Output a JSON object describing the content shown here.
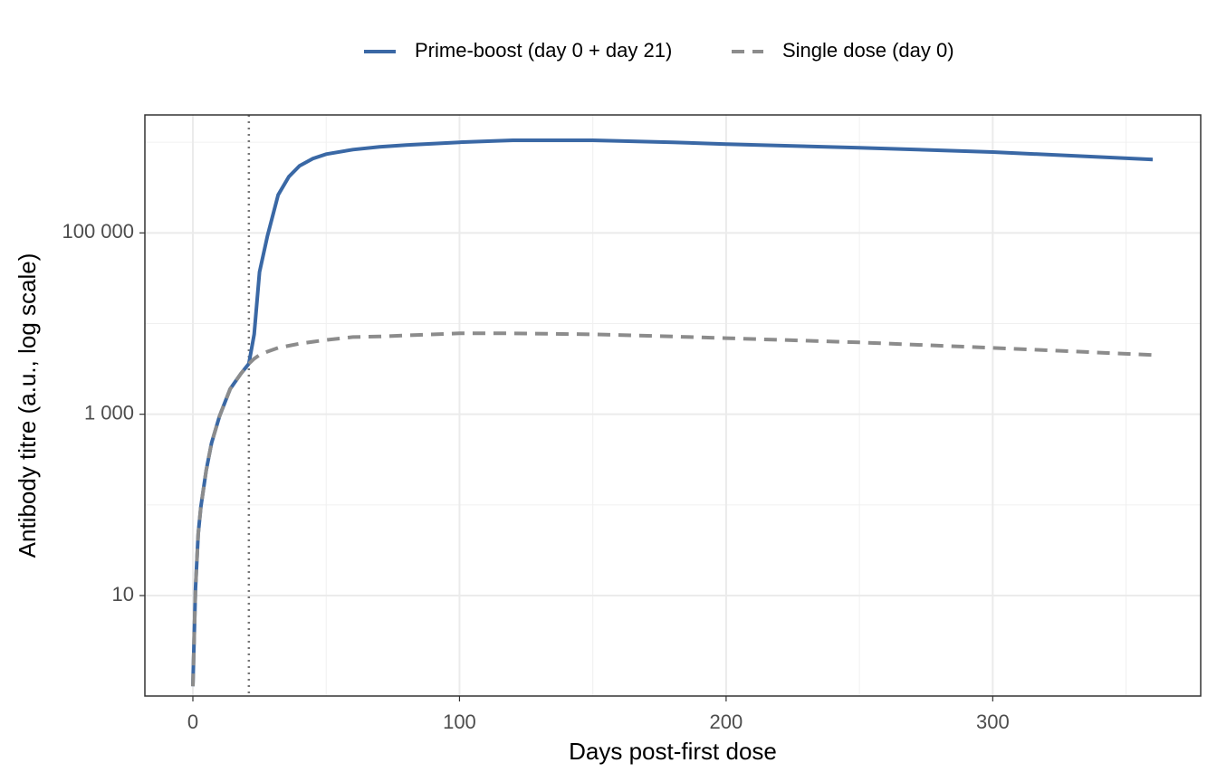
{
  "chart_data": {
    "type": "line",
    "xlabel": "Days post-first dose",
    "ylabel": "Antibody titre (a.u., log scale)",
    "x": [
      0,
      1,
      2,
      3,
      5,
      7,
      10,
      14,
      18,
      21,
      23,
      25,
      28,
      32,
      36,
      40,
      45,
      50,
      60,
      70,
      80,
      100,
      120,
      150,
      180,
      200,
      250,
      300,
      360
    ],
    "series": [
      {
        "name": "Prime-boost (day 0 + day 21)",
        "color": "#3a68a5",
        "dash": false,
        "values": [
          1,
          12,
          48,
          95,
          240,
          480,
          950,
          1900,
          2800,
          3600,
          7600,
          37000,
          93000,
          263000,
          417000,
          550000,
          660000,
          740000,
          830000,
          890000,
          930000,
          1000000,
          1050000,
          1050000,
          1000000,
          955000,
          870000,
          780000,
          645000
        ]
      },
      {
        "name": "Single dose (day 0)",
        "color": "#8c8c8c",
        "dash": true,
        "values": [
          1,
          12,
          48,
          95,
          240,
          480,
          950,
          1900,
          2800,
          3600,
          4100,
          4500,
          4900,
          5400,
          5700,
          6000,
          6300,
          6600,
          7100,
          7200,
          7400,
          7800,
          7800,
          7600,
          7200,
          6900,
          6200,
          5400,
          4500
        ]
      }
    ],
    "xlim": [
      -18,
      378
    ],
    "xticks": [
      0,
      100,
      200,
      300
    ],
    "xminor": [
      50,
      150,
      250,
      350
    ],
    "ylim": [
      0.78,
      2000000
    ],
    "ylog": true,
    "yticks": [
      10,
      {
        "value": 1000,
        "label": "1 000"
      },
      {
        "value": 100000,
        "label": "100 000"
      }
    ],
    "yminor": [
      100,
      10000,
      1000000
    ],
    "vline": 21,
    "grid": true,
    "legend": "top"
  }
}
